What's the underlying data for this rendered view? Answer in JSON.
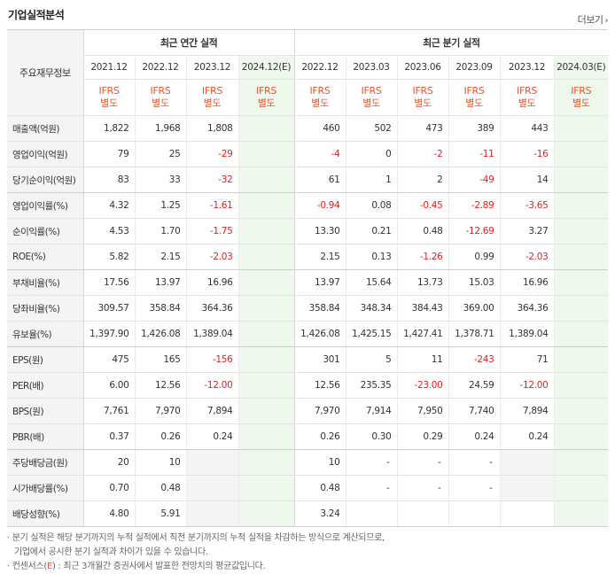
{
  "header": {
    "title": "기업실적분석",
    "more_label": "더보기",
    "more_arrow": "›"
  },
  "table": {
    "row_header_label": "주요재무정보",
    "annual_group": "최근 연간 실적",
    "quarter_group": "최근 분기 실적",
    "annual_periods": [
      "2021.12",
      "2022.12",
      "2023.12",
      "2024.12(E)"
    ],
    "quarter_periods": [
      "2022.12",
      "2023.03",
      "2023.06",
      "2023.09",
      "2023.12",
      "2024.03(E)"
    ],
    "ifrs_line1": "IFRS",
    "ifrs_line2": "별도",
    "rows": [
      {
        "label": "매출액(억원)",
        "annual": [
          "1,822",
          "1,968",
          "1,808",
          ""
        ],
        "quarter": [
          "460",
          "502",
          "473",
          "389",
          "443",
          ""
        ]
      },
      {
        "label": "영업이익(억원)",
        "annual": [
          "79",
          "25",
          "-29",
          ""
        ],
        "quarter": [
          "-4",
          "0",
          "-2",
          "-11",
          "-16",
          ""
        ]
      },
      {
        "label": "당기순이익(억원)",
        "annual": [
          "83",
          "33",
          "-32",
          ""
        ],
        "quarter": [
          "61",
          "1",
          "2",
          "-49",
          "14",
          ""
        ]
      },
      {
        "label": "영업이익률(%)",
        "annual": [
          "4.32",
          "1.25",
          "-1.61",
          ""
        ],
        "quarter": [
          "-0.94",
          "0.08",
          "-0.45",
          "-2.89",
          "-3.65",
          ""
        ]
      },
      {
        "label": "순이익률(%)",
        "annual": [
          "4.53",
          "1.70",
          "-1.75",
          ""
        ],
        "quarter": [
          "13.30",
          "0.21",
          "0.48",
          "-12.69",
          "3.27",
          ""
        ]
      },
      {
        "label": "ROE(%)",
        "annual": [
          "5.82",
          "2.15",
          "-2.03",
          ""
        ],
        "quarter": [
          "2.15",
          "0.13",
          "-1.26",
          "0.99",
          "-2.03",
          ""
        ]
      },
      {
        "label": "부채비율(%)",
        "annual": [
          "17.56",
          "13.97",
          "16.96",
          ""
        ],
        "quarter": [
          "13.97",
          "15.64",
          "13.73",
          "15.03",
          "16.96",
          ""
        ]
      },
      {
        "label": "당좌비율(%)",
        "annual": [
          "309.57",
          "358.84",
          "364.36",
          ""
        ],
        "quarter": [
          "358.84",
          "348.34",
          "384.43",
          "369.00",
          "364.36",
          ""
        ]
      },
      {
        "label": "유보율(%)",
        "annual": [
          "1,397.90",
          "1,426.08",
          "1,389.04",
          ""
        ],
        "quarter": [
          "1,426.08",
          "1,425.15",
          "1,427.41",
          "1,378.71",
          "1,389.04",
          ""
        ]
      },
      {
        "label": "EPS(원)",
        "annual": [
          "475",
          "165",
          "-156",
          ""
        ],
        "quarter": [
          "301",
          "5",
          "11",
          "-243",
          "71",
          ""
        ]
      },
      {
        "label": "PER(배)",
        "annual": [
          "6.00",
          "12.56",
          "-12.00",
          ""
        ],
        "quarter": [
          "12.56",
          "235.35",
          "-23.00",
          "24.59",
          "-12.00",
          ""
        ]
      },
      {
        "label": "BPS(원)",
        "annual": [
          "7,761",
          "7,970",
          "7,894",
          ""
        ],
        "quarter": [
          "7,970",
          "7,914",
          "7,950",
          "7,740",
          "7,894",
          ""
        ]
      },
      {
        "label": "PBR(배)",
        "annual": [
          "0.37",
          "0.26",
          "0.24",
          ""
        ],
        "quarter": [
          "0.26",
          "0.30",
          "0.29",
          "0.24",
          "0.24",
          ""
        ]
      },
      {
        "label": "주당배당금(원)",
        "annual": [
          "20",
          "10",
          "",
          ""
        ],
        "quarter": [
          "10",
          "-",
          "-",
          "-",
          "",
          ""
        ]
      },
      {
        "label": "시가배당률(%)",
        "annual": [
          "0.70",
          "0.48",
          "",
          ""
        ],
        "quarter": [
          "0.48",
          "-",
          "-",
          "-",
          "",
          ""
        ]
      },
      {
        "label": "배당성향(%)",
        "annual": [
          "4.80",
          "5.91",
          "",
          ""
        ],
        "quarter": [
          "3.24",
          "",
          "",
          "",
          "",
          ""
        ]
      }
    ]
  },
  "notes": {
    "line1": "· 분기 실적은 해당 분기까지의 누적 실적에서 직전 분기까지의 누적 실적을 차감하는 방식으로 계산되므로,",
    "line2": "기업에서 공시한 분기 실적과 차이가 있을 수 있습니다.",
    "line3_prefix": "· 컨센서스(",
    "line3_e": "E",
    "line3_suffix": ") : 최근 3개월간 증권사에서 발표한 전망치의 평균값입니다."
  },
  "colors": {
    "negative": "#e02222",
    "ifrs": "#e8542e",
    "estimate_bg": "#eef8ec",
    "label_bg": "#f4f4f4"
  }
}
